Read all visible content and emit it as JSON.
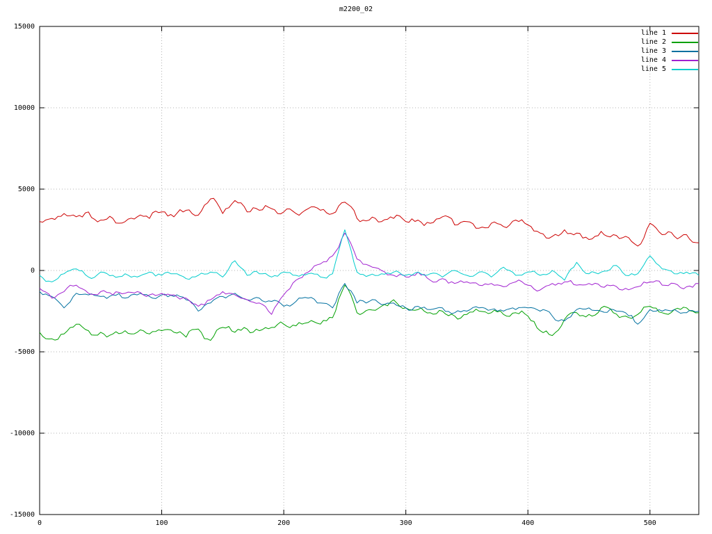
{
  "chart_data": {
    "type": "line",
    "title": "m2200_02",
    "xlabel": "",
    "ylabel": "",
    "xlim": [
      0,
      540
    ],
    "ylim": [
      -15000,
      15000
    ],
    "x_ticks": [
      0,
      100,
      200,
      300,
      400,
      500
    ],
    "y_ticks": [
      -15000,
      -10000,
      -5000,
      0,
      5000,
      10000,
      15000
    ],
    "grid": true,
    "grid_color": "#b0b0b0",
    "border_color": "#000000",
    "legend_position": "top-right",
    "x_start": 0,
    "x_step": 10,
    "series": [
      {
        "name": "line 1",
        "color": "#cc0000",
        "noise_amplitude": 250,
        "values": [
          3000,
          3200,
          3500,
          3300,
          3600,
          3100,
          3200,
          3000,
          3300,
          3200,
          3600,
          3300,
          3700,
          3400,
          4400,
          3500,
          4300,
          3600,
          3700,
          3800,
          3600,
          3500,
          3800,
          3700,
          3500,
          4200,
          3200,
          3100,
          3000,
          3200,
          3000,
          3100,
          2900,
          3300,
          2800,
          3000,
          2600,
          2900,
          2700,
          3100,
          2800,
          2300,
          2100,
          2500,
          2300,
          1900,
          2400,
          2200,
          2100,
          1500,
          2900,
          2200,
          2100,
          2200,
          1700
        ]
      },
      {
        "name": "line 2",
        "color": "#00a000",
        "noise_amplitude": 250,
        "values": [
          -3800,
          -4200,
          -3900,
          -3300,
          -3700,
          -3800,
          -3900,
          -3700,
          -3800,
          -3900,
          -3700,
          -3800,
          -4100,
          -3600,
          -4300,
          -3500,
          -3800,
          -3600,
          -3700,
          -3500,
          -3300,
          -3400,
          -3200,
          -3300,
          -2900,
          -900,
          -2600,
          -2400,
          -2200,
          -1800,
          -2300,
          -2400,
          -2600,
          -2500,
          -2800,
          -2700,
          -2500,
          -2600,
          -2700,
          -2600,
          -2800,
          -3700,
          -4000,
          -3000,
          -2600,
          -2700,
          -2300,
          -2600,
          -2800,
          -2700,
          -2200,
          -2600,
          -2400,
          -2300,
          -2600
        ]
      },
      {
        "name": "line 3",
        "color": "#0070a0",
        "noise_amplitude": 200,
        "values": [
          -1300,
          -1600,
          -2300,
          -1400,
          -1500,
          -1600,
          -1500,
          -1700,
          -1500,
          -1600,
          -1500,
          -1600,
          -1800,
          -2500,
          -2000,
          -1600,
          -1400,
          -1800,
          -1700,
          -1900,
          -2200,
          -1900,
          -1700,
          -2000,
          -2300,
          -800,
          -2000,
          -1900,
          -2100,
          -2000,
          -2300,
          -2200,
          -2400,
          -2300,
          -2600,
          -2500,
          -2300,
          -2400,
          -2500,
          -2400,
          -2300,
          -2500,
          -2800,
          -3100,
          -2400,
          -2300,
          -2500,
          -2400,
          -2600,
          -3300,
          -2400,
          -2500,
          -2400,
          -2600,
          -2500
        ]
      },
      {
        "name": "line 4",
        "color": "#a020d0",
        "noise_amplitude": 200,
        "values": [
          -1100,
          -1700,
          -1300,
          -900,
          -1400,
          -1300,
          -1500,
          -1400,
          -1300,
          -1500,
          -1400,
          -1500,
          -1700,
          -2200,
          -1800,
          -1300,
          -1500,
          -1800,
          -2000,
          -2700,
          -1500,
          -600,
          -100,
          400,
          900,
          2300,
          700,
          300,
          0,
          -300,
          -400,
          -100,
          -600,
          -500,
          -800,
          -700,
          -900,
          -800,
          -1000,
          -700,
          -900,
          -1200,
          -800,
          -700,
          -900,
          -800,
          -1000,
          -900,
          -1100,
          -1000,
          -700,
          -900,
          -800,
          -1000,
          -800
        ]
      },
      {
        "name": "line 5",
        "color": "#00cccc",
        "noise_amplitude": 180,
        "values": [
          -300,
          -700,
          -200,
          100,
          -400,
          -100,
          -300,
          -200,
          -400,
          -100,
          -300,
          -200,
          -500,
          -300,
          -100,
          -400,
          600,
          -300,
          -200,
          -400,
          -100,
          -300,
          -200,
          -400,
          -200,
          2500,
          -100,
          -300,
          -200,
          -100,
          -300,
          -100,
          -200,
          -400,
          0,
          -300,
          -100,
          -400,
          200,
          -300,
          -100,
          -300,
          0,
          -600,
          500,
          -200,
          -100,
          300,
          -300,
          -200,
          900,
          100,
          -200,
          -100,
          -300
        ]
      }
    ]
  }
}
